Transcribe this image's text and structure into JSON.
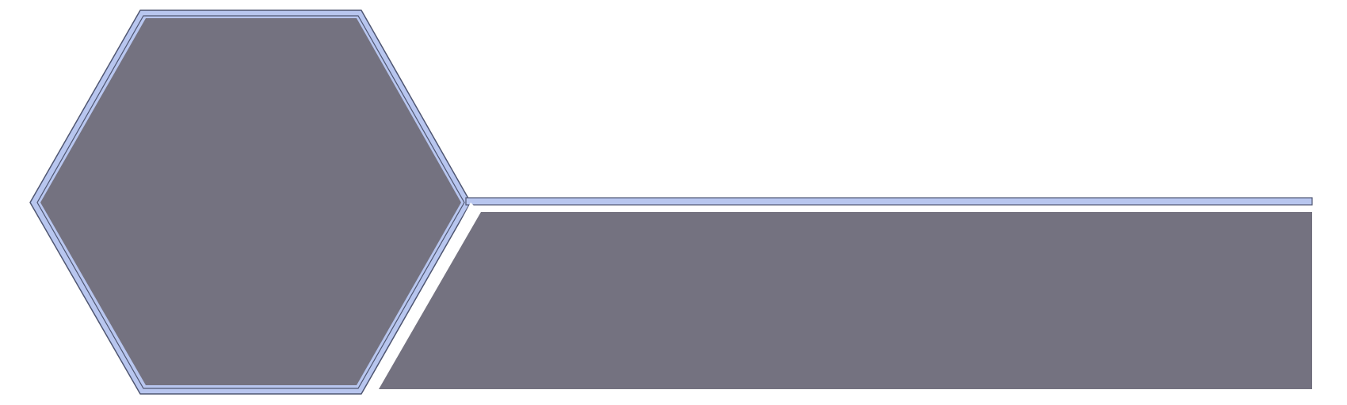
{
  "colors": {
    "background": "#ffffff",
    "panel_fill": "#747280",
    "frame_light": "#b8c6ef",
    "frame_dark": "#4f5672"
  },
  "shapes": {
    "hexagon": "hexagon-panel",
    "bar": "slanted-bar-panel"
  }
}
